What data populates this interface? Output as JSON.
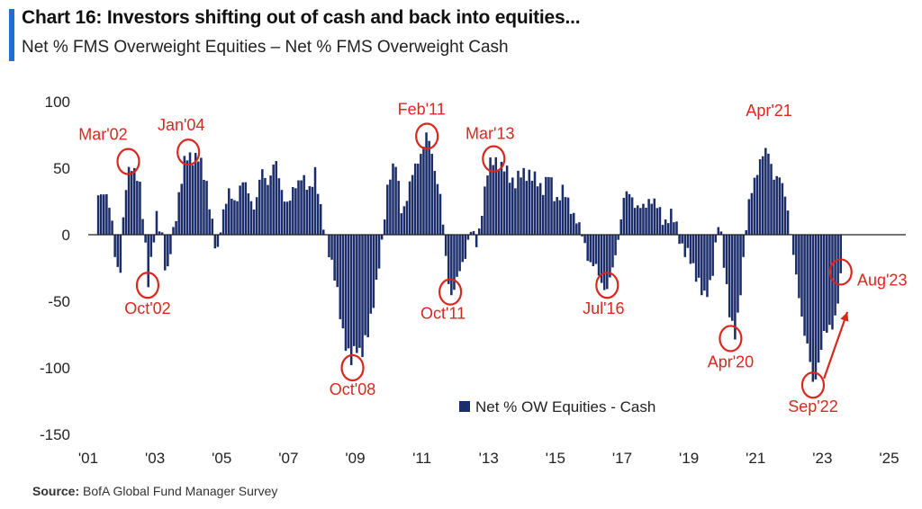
{
  "header": {
    "title": "Chart 16: Investors shifting out of cash and back into equities...",
    "subtitle": "Net % FMS Overweight Equities – Net % FMS Overweight Cash"
  },
  "footer": {
    "source_label": "Source:",
    "source_text": "BofA Global Fund Manager Survey"
  },
  "colors": {
    "bar": "#1b2d6b",
    "annotation": "#d8281e",
    "title_accent": "#1f6fd1"
  },
  "chart_data": {
    "type": "bar",
    "title": "",
    "xlabel": "",
    "ylabel": "",
    "ylim": [
      -150,
      100
    ],
    "yticks": [
      100,
      50,
      0,
      -50,
      -100,
      -150
    ],
    "xlim": [
      2001.0,
      2025.5
    ],
    "xticks": [
      {
        "label": "'01",
        "year": 2001
      },
      {
        "label": "'03",
        "year": 2003
      },
      {
        "label": "'05",
        "year": 2005
      },
      {
        "label": "'07",
        "year": 2007
      },
      {
        "label": "'09",
        "year": 2009
      },
      {
        "label": "'11",
        "year": 2011
      },
      {
        "label": "'13",
        "year": 2013
      },
      {
        "label": "'15",
        "year": 2015
      },
      {
        "label": "'17",
        "year": 2017
      },
      {
        "label": "'19",
        "year": 2019
      },
      {
        "label": "'21",
        "year": 2021
      },
      {
        "label": "'23",
        "year": 2023
      },
      {
        "label": "'25",
        "year": 2025
      }
    ],
    "legend": {
      "label": "Net % OW Equities - Cash",
      "position": "bottom-right"
    },
    "series_anchors": [
      [
        2001.3,
        33
      ],
      [
        2001.5,
        30
      ],
      [
        2001.7,
        15
      ],
      [
        2001.8,
        -12
      ],
      [
        2001.95,
        -36
      ],
      [
        2002.1,
        30
      ],
      [
        2002.25,
        57
      ],
      [
        2002.4,
        45
      ],
      [
        2002.55,
        35
      ],
      [
        2002.7,
        2
      ],
      [
        2002.78,
        -38
      ],
      [
        2002.9,
        -20
      ],
      [
        2003.05,
        14
      ],
      [
        2003.2,
        5
      ],
      [
        2003.35,
        -38
      ],
      [
        2003.5,
        -5
      ],
      [
        2003.65,
        20
      ],
      [
        2003.8,
        40
      ],
      [
        2003.9,
        55
      ],
      [
        2004.0,
        62
      ],
      [
        2004.15,
        58
      ],
      [
        2004.35,
        55
      ],
      [
        2004.55,
        40
      ],
      [
        2004.7,
        10
      ],
      [
        2004.85,
        -20
      ],
      [
        2005.0,
        15
      ],
      [
        2005.2,
        30
      ],
      [
        2005.4,
        25
      ],
      [
        2005.6,
        40
      ],
      [
        2005.8,
        32
      ],
      [
        2006.0,
        20
      ],
      [
        2006.2,
        48
      ],
      [
        2006.4,
        40
      ],
      [
        2006.6,
        55
      ],
      [
        2006.8,
        35
      ],
      [
        2007.0,
        20
      ],
      [
        2007.2,
        38
      ],
      [
        2007.4,
        45
      ],
      [
        2007.6,
        30
      ],
      [
        2007.8,
        50
      ],
      [
        2008.0,
        10
      ],
      [
        2008.2,
        -8
      ],
      [
        2008.4,
        -35
      ],
      [
        2008.6,
        -68
      ],
      [
        2008.8,
        -90
      ],
      [
        2008.92,
        -100
      ],
      [
        2009.0,
        -82
      ],
      [
        2009.2,
        -88
      ],
      [
        2009.4,
        -75
      ],
      [
        2009.6,
        -40
      ],
      [
        2009.8,
        -10
      ],
      [
        2010.0,
        45
      ],
      [
        2010.2,
        55
      ],
      [
        2010.4,
        15
      ],
      [
        2010.6,
        35
      ],
      [
        2010.8,
        50
      ],
      [
        2011.0,
        65
      ],
      [
        2011.15,
        75
      ],
      [
        2011.35,
        55
      ],
      [
        2011.55,
        30
      ],
      [
        2011.7,
        -15
      ],
      [
        2011.85,
        -45
      ],
      [
        2012.05,
        -35
      ],
      [
        2012.25,
        -20
      ],
      [
        2012.45,
        5
      ],
      [
        2012.65,
        -10
      ],
      [
        2012.85,
        30
      ],
      [
        2013.0,
        50
      ],
      [
        2013.2,
        58
      ],
      [
        2013.4,
        50
      ],
      [
        2013.6,
        45
      ],
      [
        2013.8,
        40
      ],
      [
        2014.0,
        45
      ],
      [
        2014.2,
        48
      ],
      [
        2014.4,
        40
      ],
      [
        2014.6,
        35
      ],
      [
        2014.8,
        45
      ],
      [
        2015.0,
        25
      ],
      [
        2015.2,
        35
      ],
      [
        2015.4,
        22
      ],
      [
        2015.6,
        15
      ],
      [
        2015.8,
        -2
      ],
      [
        2016.0,
        -18
      ],
      [
        2016.2,
        -25
      ],
      [
        2016.35,
        -35
      ],
      [
        2016.55,
        -40
      ],
      [
        2016.75,
        -25
      ],
      [
        2016.9,
        2
      ],
      [
        2017.05,
        28
      ],
      [
        2017.25,
        30
      ],
      [
        2017.45,
        22
      ],
      [
        2017.65,
        18
      ],
      [
        2017.85,
        30
      ],
      [
        2018.05,
        20
      ],
      [
        2018.25,
        10
      ],
      [
        2018.45,
        15
      ],
      [
        2018.65,
        5
      ],
      [
        2018.85,
        -12
      ],
      [
        2019.05,
        -20
      ],
      [
        2019.25,
        -30
      ],
      [
        2019.45,
        -50
      ],
      [
        2019.6,
        -40
      ],
      [
        2019.75,
        -20
      ],
      [
        2019.9,
        10
      ],
      [
        2020.1,
        -30
      ],
      [
        2020.25,
        -65
      ],
      [
        2020.4,
        -80
      ],
      [
        2020.55,
        -40
      ],
      [
        2020.75,
        15
      ],
      [
        2020.95,
        40
      ],
      [
        2021.1,
        55
      ],
      [
        2021.25,
        60
      ],
      [
        2021.4,
        62
      ],
      [
        2021.55,
        45
      ],
      [
        2021.75,
        40
      ],
      [
        2021.95,
        25
      ],
      [
        2022.1,
        -10
      ],
      [
        2022.25,
        -40
      ],
      [
        2022.45,
        -70
      ],
      [
        2022.6,
        -90
      ],
      [
        2022.72,
        -115
      ],
      [
        2022.85,
        -100
      ],
      [
        2023.0,
        -78
      ],
      [
        2023.2,
        -72
      ],
      [
        2023.4,
        -60
      ],
      [
        2023.55,
        -35
      ]
    ],
    "annotations": [
      {
        "label": "Mar'02",
        "x": 2002.2,
        "y": 55,
        "label_dx": -28,
        "label_dy": -24
      },
      {
        "label": "Oct'02",
        "x": 2002.78,
        "y": -38,
        "label_dx": 0,
        "label_dy": 32
      },
      {
        "label": "Jan'04",
        "x": 2004.0,
        "y": 62,
        "label_dx": -8,
        "label_dy": -24
      },
      {
        "label": "Oct'08",
        "x": 2008.92,
        "y": -100,
        "label_dx": 0,
        "label_dy": 30
      },
      {
        "label": "Feb'11",
        "x": 2011.15,
        "y": 74,
        "label_dx": -6,
        "label_dy": -24
      },
      {
        "label": "Oct'11",
        "x": 2011.85,
        "y": -43,
        "label_dx": -8,
        "label_dy": 30
      },
      {
        "label": "Mar'13",
        "x": 2013.15,
        "y": 57,
        "label_dx": -4,
        "label_dy": -22
      },
      {
        "label": "Jul'16",
        "x": 2016.55,
        "y": -38,
        "label_dx": -4,
        "label_dy": 32
      },
      {
        "label": "Apr'21",
        "x": 2021.4,
        "y": 62,
        "label_dx": 0,
        "label_dy": -40,
        "no_circle": true
      },
      {
        "label": "Apr'20",
        "x": 2020.25,
        "y": -78,
        "label_dx": 0,
        "label_dy": 32
      },
      {
        "label": "Sep'22",
        "x": 2022.72,
        "y": -113,
        "label_dx": 0,
        "label_dy": 30
      },
      {
        "label": "Aug'23",
        "x": 2023.55,
        "y": -28,
        "label_dx": 46,
        "label_dy": 15
      }
    ]
  }
}
